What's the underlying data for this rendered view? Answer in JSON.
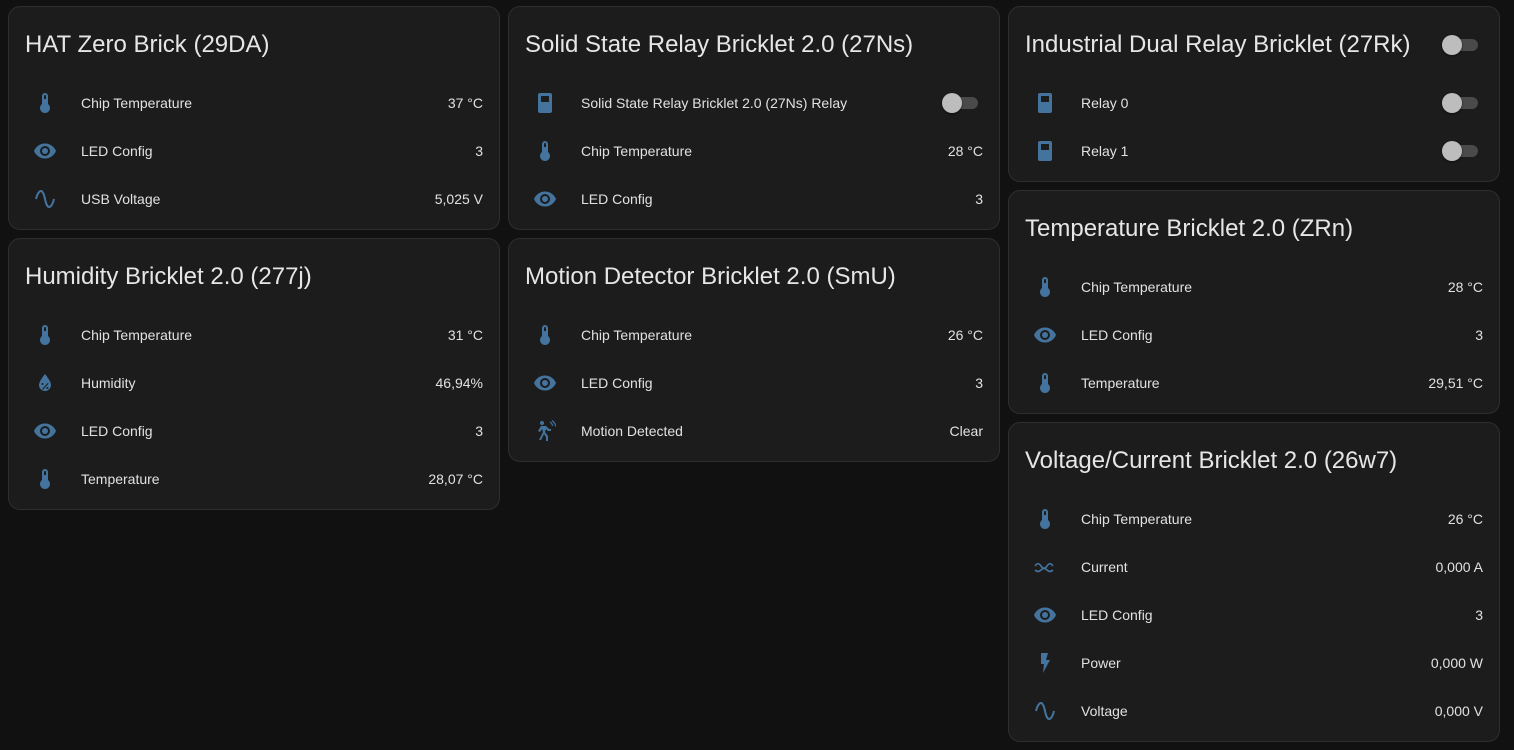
{
  "colors": {
    "accent": "#44739e",
    "card": "#1c1c1c",
    "background": "#111111"
  },
  "cards": {
    "hat": {
      "title": "HAT Zero Brick (29DA)",
      "rows": [
        {
          "icon": "thermometer-icon",
          "label": "Chip Temperature",
          "value": "37 °C"
        },
        {
          "icon": "eye-icon",
          "label": "LED Config",
          "value": "3"
        },
        {
          "icon": "sine-wave-icon",
          "label": "USB Voltage",
          "value": "5,025 V"
        }
      ]
    },
    "humidity": {
      "title": "Humidity Bricklet 2.0 (277j)",
      "rows": [
        {
          "icon": "thermometer-icon",
          "label": "Chip Temperature",
          "value": "31 °C"
        },
        {
          "icon": "water-percent-icon",
          "label": "Humidity",
          "value": "46,94%"
        },
        {
          "icon": "eye-icon",
          "label": "LED Config",
          "value": "3"
        },
        {
          "icon": "thermometer-icon",
          "label": "Temperature",
          "value": "28,07 °C"
        }
      ]
    },
    "ssr": {
      "title": "Solid State Relay Bricklet 2.0 (27Ns)",
      "rows": [
        {
          "icon": "relay-icon",
          "label": "Solid State Relay Bricklet 2.0 (27Ns) Relay",
          "toggle": "off"
        },
        {
          "icon": "thermometer-icon",
          "label": "Chip Temperature",
          "value": "28 °C"
        },
        {
          "icon": "eye-icon",
          "label": "LED Config",
          "value": "3"
        }
      ]
    },
    "motion": {
      "title": "Motion Detector Bricklet 2.0 (SmU)",
      "rows": [
        {
          "icon": "thermometer-icon",
          "label": "Chip Temperature",
          "value": "26 °C"
        },
        {
          "icon": "eye-icon",
          "label": "LED Config",
          "value": "3"
        },
        {
          "icon": "motion-sensor-icon",
          "label": "Motion Detected",
          "value": "Clear"
        }
      ]
    },
    "dualrelay": {
      "title": "Industrial Dual Relay Bricklet (27Rk)",
      "header_toggle": "off",
      "rows": [
        {
          "icon": "relay-icon",
          "label": "Relay 0",
          "toggle": "off"
        },
        {
          "icon": "relay-icon",
          "label": "Relay 1",
          "toggle": "off"
        }
      ]
    },
    "temperature": {
      "title": "Temperature Bricklet 2.0 (ZRn)",
      "rows": [
        {
          "icon": "thermometer-icon",
          "label": "Chip Temperature",
          "value": "28 °C"
        },
        {
          "icon": "eye-icon",
          "label": "LED Config",
          "value": "3"
        },
        {
          "icon": "thermometer-icon",
          "label": "Temperature",
          "value": "29,51 °C"
        }
      ]
    },
    "voltcurrent": {
      "title": "Voltage/Current Bricklet 2.0 (26w7)",
      "rows": [
        {
          "icon": "thermometer-icon",
          "label": "Chip Temperature",
          "value": "26 °C"
        },
        {
          "icon": "current-ac-icon",
          "label": "Current",
          "value": "0,000 A"
        },
        {
          "icon": "eye-icon",
          "label": "LED Config",
          "value": "3"
        },
        {
          "icon": "flash-icon",
          "label": "Power",
          "value": "0,000 W"
        },
        {
          "icon": "sine-wave-icon",
          "label": "Voltage",
          "value": "0,000 V"
        }
      ]
    }
  }
}
